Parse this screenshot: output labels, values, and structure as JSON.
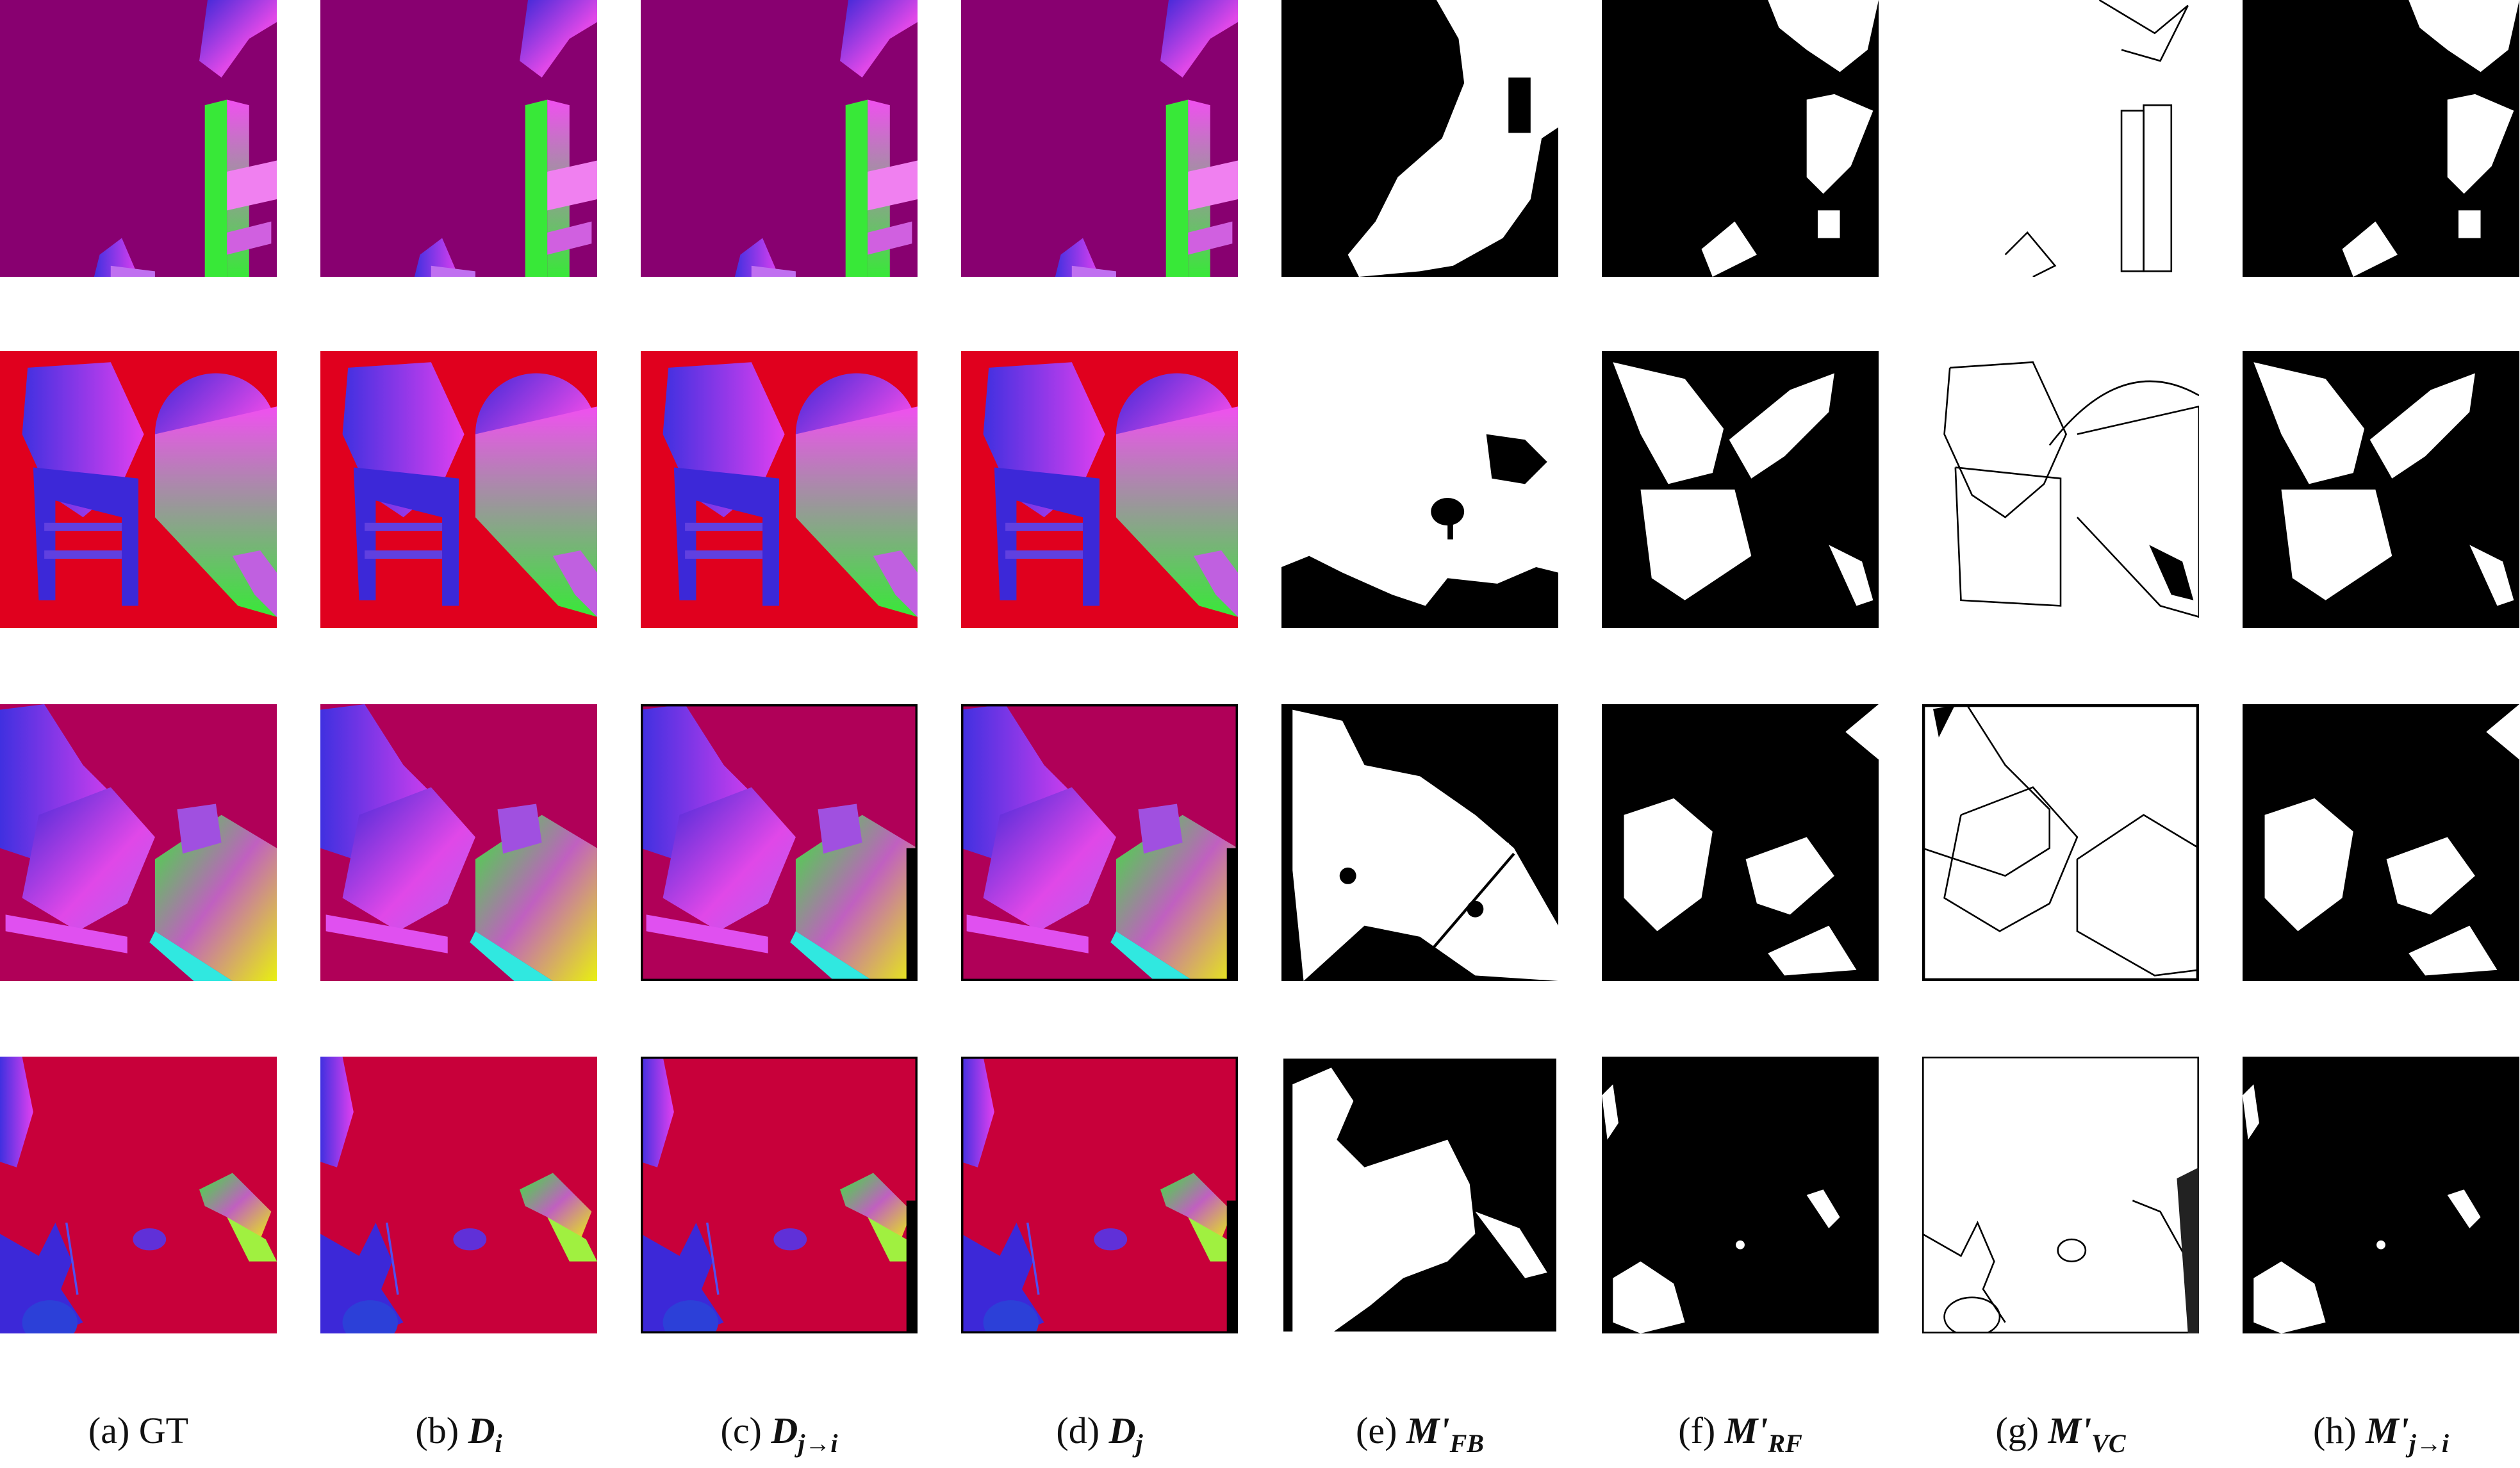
{
  "figure": {
    "columns": [
      {
        "id": "a",
        "type": "normal",
        "label": "(a) GT",
        "prefix": "(a)",
        "symbol": "GT",
        "sub": ""
      },
      {
        "id": "b",
        "type": "normal",
        "label": "(b) D_i",
        "prefix": "(b)",
        "symbol": "D",
        "sub": "i"
      },
      {
        "id": "c",
        "type": "normal-warped",
        "label": "(c) D_j→i",
        "prefix": "(c)",
        "symbol": "D",
        "sub": "j→i"
      },
      {
        "id": "d",
        "type": "normal-warped",
        "label": "(d) D_j",
        "prefix": "(d)",
        "symbol": "D",
        "sub": "j"
      },
      {
        "id": "e",
        "type": "mask-fb",
        "label": "(e) M'_FB",
        "prefix": "(e)",
        "symbol": "M'",
        "sub": "FB"
      },
      {
        "id": "f",
        "type": "mask-rf",
        "label": "(f) M'_RF",
        "prefix": "(f)",
        "symbol": "M'",
        "sub": "RF"
      },
      {
        "id": "g",
        "type": "mask-vc",
        "label": "(g) M'_VC",
        "prefix": "(g)",
        "symbol": "M'",
        "sub": "VC"
      },
      {
        "id": "h",
        "type": "mask-rf",
        "label": "(h) M'_j→i",
        "prefix": "(h)",
        "symbol": "M'",
        "sub": "j→i"
      }
    ],
    "rows": [
      {
        "index": 1,
        "background": "#880070",
        "objects": [
          "chair-top",
          "chair-center",
          "chair-bottom-left"
        ]
      },
      {
        "index": 2,
        "background": "#e0001e",
        "objects": [
          "chair-left",
          "cylinder-right"
        ]
      },
      {
        "index": 3,
        "background": "#b00058",
        "objects": [
          "stool-left",
          "box-right"
        ]
      },
      {
        "index": 4,
        "background": "#c8003a",
        "objects": [
          "chair-left",
          "blob-center",
          "bracket-right",
          "sphere-bottom-left"
        ]
      }
    ],
    "colors": {
      "blue": "#3c28d8",
      "magenta": "#e048e8",
      "green": "#38e838",
      "yellow": "#e8f010",
      "black": "#000000",
      "white": "#ffffff"
    }
  }
}
